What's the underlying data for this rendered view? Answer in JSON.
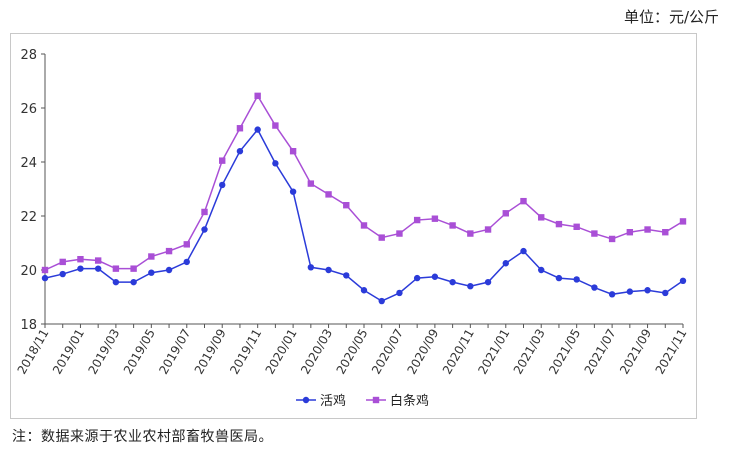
{
  "unit_label": "单位：元/公斤",
  "source_note": "注：数据来源于农业农村部畜牧兽医局。",
  "colors": {
    "live_chicken": "#2b3bd9",
    "white_chicken": "#a94fd6",
    "axis": "#555555"
  },
  "chart_data": {
    "type": "line",
    "title": "",
    "xlabel": "",
    "ylabel": "",
    "ylim": [
      18,
      28
    ],
    "yticks": [
      18,
      20,
      22,
      24,
      26,
      28
    ],
    "grid": false,
    "legend_position": "bottom",
    "x": [
      "2018/11",
      "2018/12",
      "2019/01",
      "2019/02",
      "2019/03",
      "2019/04",
      "2019/05",
      "2019/06",
      "2019/07",
      "2019/08",
      "2019/09",
      "2019/10",
      "2019/11",
      "2019/12",
      "2020/01",
      "2020/02",
      "2020/03",
      "2020/04",
      "2020/05",
      "2020/06",
      "2020/07",
      "2020/08",
      "2020/09",
      "2020/10",
      "2020/11",
      "2020/12",
      "2021/01",
      "2021/02",
      "2021/03",
      "2021/04",
      "2021/05",
      "2021/06",
      "2021/07",
      "2021/08",
      "2021/09",
      "2021/10",
      "2021/11"
    ],
    "xtick_labels": [
      "2018/11",
      "2019/01",
      "2019/03",
      "2019/05",
      "2019/07",
      "2019/09",
      "2019/11",
      "2020/01",
      "2020/03",
      "2020/05",
      "2020/07",
      "2020/09",
      "2020/11",
      "2021/01",
      "2021/03",
      "2021/05",
      "2021/07",
      "2021/09",
      "2021/11"
    ],
    "series": [
      {
        "name": "活鸡",
        "marker": "circle",
        "values": [
          19.7,
          19.85,
          20.05,
          20.05,
          19.55,
          19.55,
          19.9,
          20.0,
          20.3,
          21.5,
          23.15,
          24.4,
          25.2,
          23.95,
          22.9,
          20.1,
          20.0,
          19.8,
          19.25,
          18.85,
          19.15,
          19.7,
          19.75,
          19.55,
          19.4,
          19.55,
          20.25,
          20.7,
          20.0,
          19.7,
          19.65,
          19.35,
          19.1,
          19.2,
          19.25,
          19.15,
          19.6
        ]
      },
      {
        "name": "白条鸡",
        "marker": "square",
        "values": [
          20.0,
          20.3,
          20.4,
          20.35,
          20.05,
          20.05,
          20.5,
          20.7,
          20.95,
          22.15,
          24.05,
          25.25,
          26.45,
          25.35,
          24.4,
          23.2,
          22.8,
          22.4,
          21.65,
          21.2,
          21.35,
          21.85,
          21.9,
          21.65,
          21.35,
          21.5,
          22.1,
          22.55,
          21.95,
          21.7,
          21.6,
          21.35,
          21.15,
          21.4,
          21.5,
          21.4,
          21.8
        ]
      }
    ]
  }
}
